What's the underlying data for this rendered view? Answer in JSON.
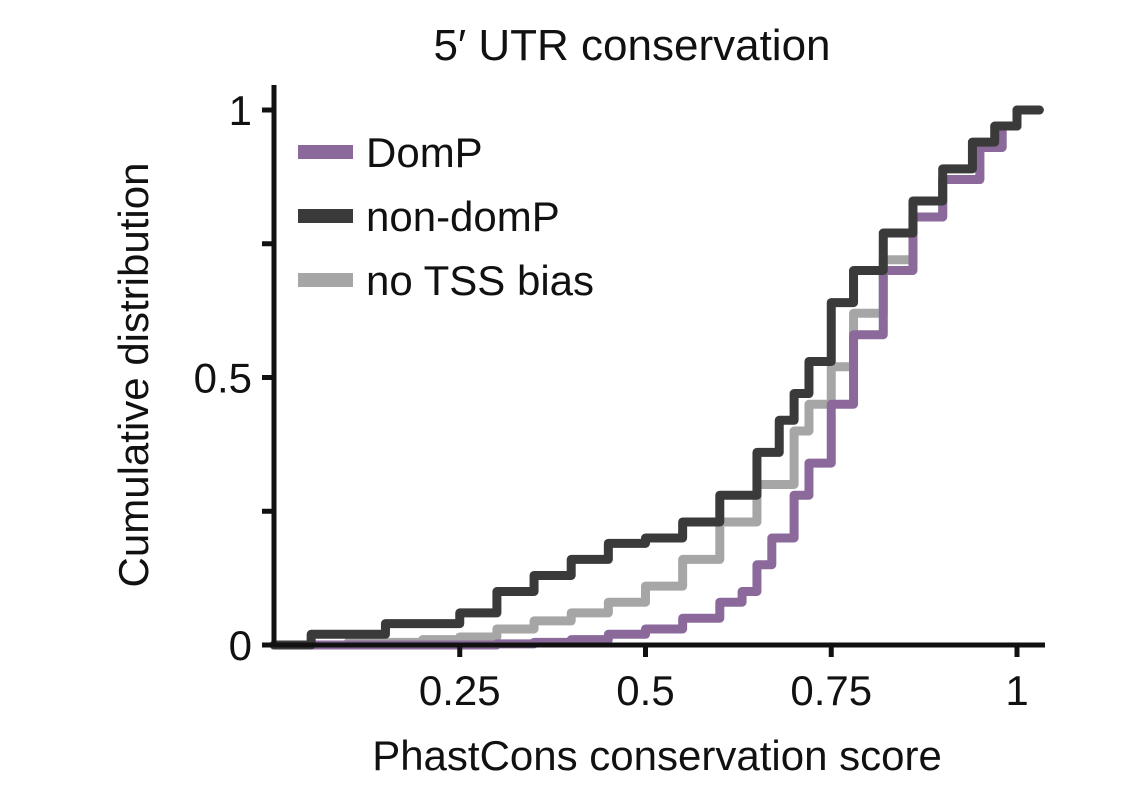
{
  "chart_data": {
    "type": "line",
    "step": true,
    "title": "5′ UTR conservation",
    "xlabel": "PhastCons conservation score",
    "ylabel": "Cumulative distribution",
    "xlim": [
      0,
      1.03
    ],
    "ylim": [
      0,
      1
    ],
    "x_ticks": [
      {
        "value": 0.25,
        "label": "0.25"
      },
      {
        "value": 0.5,
        "label": "0.5"
      },
      {
        "value": 0.75,
        "label": "0.75"
      },
      {
        "value": 1,
        "label": "1"
      }
    ],
    "y_ticks": [
      {
        "value": 0,
        "label": "0"
      },
      {
        "value": 0.25,
        "label": ""
      },
      {
        "value": 0.5,
        "label": "0.5"
      },
      {
        "value": 0.75,
        "label": ""
      },
      {
        "value": 1,
        "label": "1"
      }
    ],
    "grid": false,
    "legend_position": "top-left",
    "series": [
      {
        "name": "DomP",
        "color": "#8b6a9b",
        "points": [
          [
            0,
            0
          ],
          [
            0.1,
            0
          ],
          [
            0.25,
            0
          ],
          [
            0.3,
            0.002
          ],
          [
            0.35,
            0.005
          ],
          [
            0.4,
            0.01
          ],
          [
            0.45,
            0.02
          ],
          [
            0.5,
            0.03
          ],
          [
            0.55,
            0.05
          ],
          [
            0.6,
            0.08
          ],
          [
            0.63,
            0.1
          ],
          [
            0.65,
            0.15
          ],
          [
            0.67,
            0.2
          ],
          [
            0.7,
            0.28
          ],
          [
            0.72,
            0.34
          ],
          [
            0.75,
            0.45
          ],
          [
            0.78,
            0.58
          ],
          [
            0.82,
            0.7
          ],
          [
            0.86,
            0.8
          ],
          [
            0.9,
            0.87
          ],
          [
            0.95,
            0.93
          ],
          [
            0.98,
            0.97
          ],
          [
            1,
            1
          ],
          [
            1.05,
            1
          ]
        ]
      },
      {
        "name": "non-domP",
        "color": "#3a3a3a",
        "points": [
          [
            0,
            0
          ],
          [
            0.05,
            0.02
          ],
          [
            0.15,
            0.04
          ],
          [
            0.25,
            0.06
          ],
          [
            0.3,
            0.1
          ],
          [
            0.35,
            0.13
          ],
          [
            0.4,
            0.16
          ],
          [
            0.45,
            0.19
          ],
          [
            0.5,
            0.2
          ],
          [
            0.55,
            0.23
          ],
          [
            0.6,
            0.28
          ],
          [
            0.65,
            0.36
          ],
          [
            0.68,
            0.42
          ],
          [
            0.7,
            0.47
          ],
          [
            0.72,
            0.53
          ],
          [
            0.75,
            0.64
          ],
          [
            0.78,
            0.7
          ],
          [
            0.82,
            0.77
          ],
          [
            0.86,
            0.83
          ],
          [
            0.9,
            0.89
          ],
          [
            0.94,
            0.94
          ],
          [
            0.97,
            0.97
          ],
          [
            1,
            1
          ],
          [
            1.05,
            1
          ]
        ]
      },
      {
        "name": "no TSS bias",
        "color": "#a6a6a6",
        "points": [
          [
            0,
            0
          ],
          [
            0.1,
            0.005
          ],
          [
            0.2,
            0.01
          ],
          [
            0.25,
            0.015
          ],
          [
            0.3,
            0.03
          ],
          [
            0.35,
            0.045
          ],
          [
            0.4,
            0.06
          ],
          [
            0.45,
            0.08
          ],
          [
            0.5,
            0.11
          ],
          [
            0.55,
            0.16
          ],
          [
            0.6,
            0.23
          ],
          [
            0.65,
            0.3
          ],
          [
            0.7,
            0.4
          ],
          [
            0.72,
            0.45
          ],
          [
            0.75,
            0.52
          ],
          [
            0.78,
            0.62
          ],
          [
            0.82,
            0.72
          ],
          [
            0.86,
            0.8
          ],
          [
            0.9,
            0.87
          ],
          [
            0.95,
            0.93
          ],
          [
            0.98,
            0.97
          ],
          [
            1,
            1
          ],
          [
            1.05,
            1
          ]
        ]
      }
    ]
  }
}
